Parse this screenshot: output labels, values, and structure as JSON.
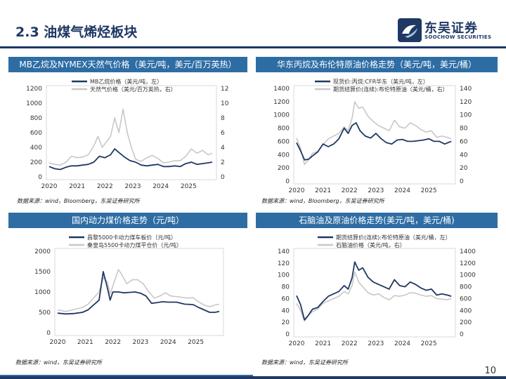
{
  "page": {
    "title": "2.3 油煤气烯烃板块",
    "page_number": "10"
  },
  "brand": {
    "name_cn": "东吴证券",
    "name_en": "SOOCHOW SECURITIES",
    "color": "#1f3864",
    "header_color": "#2e6da4"
  },
  "panels": [
    {
      "header": "MB乙烷及NYMEX天然气价格（美元/吨，美元/百万英热）",
      "source": "数据来源：wind，Bloomberg，东吴证券研究所"
    },
    {
      "header": "华东丙烷及布伦特原油价格走势（美元/吨，美元/桶）",
      "source": "数据来源：wind，Bloomberg，东吴证券研究所"
    },
    {
      "header": "国内动力煤价格走势（元/吨）",
      "source": "数据来源：wind，东吴证券研究所"
    },
    {
      "header": "石脑油及原油价格走势(美元/吨，美元/桶)",
      "source": "数据来源：wind，东吴证券研究所"
    }
  ],
  "chart_data": [
    {
      "type": "line",
      "x_ticks": [
        "2020",
        "2021",
        "2022",
        "2023",
        "2024",
        "2025"
      ],
      "x_range": [
        2020,
        2025.9
      ],
      "ylim_left": [
        0,
        1200
      ],
      "yticks_left": [
        0,
        200,
        400,
        600,
        800,
        1000,
        1200
      ],
      "ylim_right": [
        0,
        12
      ],
      "yticks_right": [
        0,
        2,
        4,
        6,
        8,
        10,
        12
      ],
      "grid": false,
      "series": [
        {
          "name": "MB乙烷价格（美元/吨，左）",
          "axis": "left",
          "color": "#1f3864",
          "x": [
            2020.0,
            2020.2,
            2020.4,
            2020.6,
            2020.8,
            2021.0,
            2021.2,
            2021.4,
            2021.6,
            2021.8,
            2022.0,
            2022.2,
            2022.35,
            2022.5,
            2022.7,
            2022.9,
            2023.1,
            2023.3,
            2023.5,
            2023.7,
            2023.9,
            2024.1,
            2024.3,
            2024.5,
            2024.7,
            2024.9,
            2025.1,
            2025.3,
            2025.5,
            2025.7,
            2025.85
          ],
          "y": [
            140,
            110,
            100,
            130,
            150,
            150,
            160,
            170,
            200,
            280,
            260,
            300,
            380,
            330,
            270,
            220,
            200,
            160,
            150,
            160,
            170,
            140,
            140,
            150,
            140,
            180,
            200,
            170,
            180,
            190,
            200
          ]
        },
        {
          "name": "天然气价格（美元/百万英热，右）",
          "axis": "right",
          "color": "#c8c8c8",
          "x": [
            2020.0,
            2020.2,
            2020.4,
            2020.6,
            2020.8,
            2021.0,
            2021.2,
            2021.4,
            2021.6,
            2021.75,
            2021.9,
            2022.0,
            2022.2,
            2022.35,
            2022.5,
            2022.65,
            2022.8,
            2022.95,
            2023.1,
            2023.3,
            2023.5,
            2023.7,
            2023.9,
            2024.1,
            2024.3,
            2024.5,
            2024.7,
            2024.9,
            2025.1,
            2025.3,
            2025.5,
            2025.7,
            2025.85
          ],
          "y": [
            1.9,
            1.7,
            1.6,
            2.0,
            2.8,
            2.6,
            2.7,
            3.0,
            4.2,
            5.5,
            4.0,
            4.5,
            5.5,
            8.0,
            6.0,
            9.2,
            6.0,
            4.0,
            2.4,
            2.1,
            2.6,
            2.9,
            2.5,
            1.9,
            2.0,
            2.2,
            2.2,
            2.8,
            3.8,
            3.2,
            3.6,
            3.0,
            3.2
          ]
        }
      ]
    },
    {
      "type": "line",
      "x_ticks": [
        "2020",
        "2021",
        "2022",
        "2023",
        "2024",
        "2025"
      ],
      "x_range": [
        2020,
        2025.9
      ],
      "ylim_left": [
        0,
        1400
      ],
      "yticks_left": [
        0,
        200,
        400,
        600,
        800,
        1000,
        1200,
        1400
      ],
      "ylim_right": [
        0,
        140
      ],
      "yticks_right": [
        0,
        20,
        40,
        60,
        80,
        100,
        120,
        140
      ],
      "grid": false,
      "series": [
        {
          "name": "现货价:丙烷:CFR华东（美元/吨，左）",
          "axis": "left",
          "color": "#1f3864",
          "x": [
            2020.0,
            2020.15,
            2020.3,
            2020.45,
            2020.6,
            2020.8,
            2021.0,
            2021.2,
            2021.4,
            2021.6,
            2021.8,
            2021.95,
            2022.1,
            2022.25,
            2022.4,
            2022.6,
            2022.8,
            2023.0,
            2023.2,
            2023.4,
            2023.6,
            2023.8,
            2024.0,
            2024.2,
            2024.4,
            2024.6,
            2024.8,
            2025.0,
            2025.2,
            2025.4,
            2025.6,
            2025.85
          ],
          "y": [
            580,
            460,
            320,
            330,
            380,
            440,
            560,
            520,
            560,
            640,
            800,
            720,
            840,
            880,
            760,
            680,
            650,
            720,
            640,
            580,
            560,
            620,
            630,
            600,
            600,
            610,
            620,
            640,
            600,
            600,
            560,
            600
          ]
        },
        {
          "name": "期货结算价(连续):布伦特原油（美元/桶，右）",
          "axis": "right",
          "color": "#c8c8c8",
          "x": [
            2020.0,
            2020.15,
            2020.3,
            2020.45,
            2020.6,
            2020.8,
            2021.0,
            2021.2,
            2021.4,
            2021.6,
            2021.8,
            2021.95,
            2022.1,
            2022.2,
            2022.35,
            2022.5,
            2022.7,
            2022.9,
            2023.1,
            2023.3,
            2023.5,
            2023.7,
            2023.9,
            2024.1,
            2024.3,
            2024.5,
            2024.7,
            2024.9,
            2025.1,
            2025.3,
            2025.5,
            2025.7,
            2025.85
          ],
          "y": [
            65,
            50,
            25,
            32,
            42,
            45,
            55,
            64,
            68,
            72,
            82,
            76,
            95,
            120,
            110,
            112,
            98,
            90,
            84,
            80,
            76,
            92,
            82,
            80,
            88,
            84,
            78,
            74,
            76,
            66,
            68,
            66,
            64
          ]
        }
      ]
    },
    {
      "type": "line",
      "x_ticks": [
        "2020",
        "2021",
        "2022",
        "2023",
        "2024",
        "2025"
      ],
      "x_range": [
        2020,
        2025.9
      ],
      "ylim_left": [
        0,
        2000
      ],
      "yticks_left": [
        0,
        500,
        1000,
        1500,
        2000
      ],
      "grid": false,
      "series": [
        {
          "name": "昌黎5000卡动力煤车板价（元/吨）",
          "color": "#1f3864",
          "x": [
            2020.0,
            2020.3,
            2020.6,
            2020.9,
            2021.1,
            2021.3,
            2021.5,
            2021.65,
            2021.8,
            2021.9,
            2022.0,
            2022.2,
            2022.4,
            2022.6,
            2022.8,
            2023.0,
            2023.2,
            2023.4,
            2023.6,
            2023.8,
            2024.0,
            2024.3,
            2024.6,
            2024.9,
            2025.1,
            2025.3,
            2025.5,
            2025.7,
            2025.85
          ],
          "y": [
            480,
            460,
            470,
            500,
            560,
            680,
            800,
            1500,
            1100,
            800,
            1000,
            1000,
            980,
            990,
            1000,
            970,
            900,
            720,
            740,
            760,
            750,
            750,
            700,
            690,
            620,
            560,
            500,
            500,
            520
          ]
        },
        {
          "name": "秦皇岛5500卡动力煤平仓价（元/吨）",
          "color": "#c8c8c8",
          "x": [
            2020.0,
            2020.3,
            2020.6,
            2020.9,
            2021.1,
            2021.3,
            2021.5,
            2021.65,
            2021.8,
            2021.9,
            2022.0,
            2022.2,
            2022.3,
            2022.5,
            2022.7,
            2022.9,
            2023.1,
            2023.3,
            2023.5,
            2023.7,
            2023.9,
            2024.1,
            2024.4,
            2024.7,
            2024.9,
            2025.1,
            2025.3,
            2025.5,
            2025.7,
            2025.85
          ],
          "y": [
            560,
            520,
            570,
            620,
            700,
            850,
            1000,
            1350,
            1250,
            950,
            1150,
            1550,
            1450,
            1200,
            1300,
            1300,
            1200,
            1000,
            850,
            900,
            980,
            900,
            880,
            850,
            860,
            760,
            680,
            640,
            680,
            700
          ]
        }
      ]
    },
    {
      "type": "line",
      "x_ticks": [
        "2020",
        "2021",
        "2022",
        "2023",
        "2024",
        "2025"
      ],
      "x_range": [
        2020,
        2025.9
      ],
      "ylim_left": [
        0,
        140
      ],
      "yticks_left": [
        0,
        20,
        40,
        60,
        80,
        100,
        120,
        140
      ],
      "ylim_right": [
        0,
        1400
      ],
      "yticks_right": [
        0,
        200,
        400,
        600,
        800,
        1000,
        1200,
        1400
      ],
      "grid": false,
      "series": [
        {
          "name": "期货结算价(连续):布伦特原油（美元/桶，左）",
          "axis": "left",
          "color": "#1f3864",
          "x": [
            2020.0,
            2020.15,
            2020.3,
            2020.45,
            2020.6,
            2020.8,
            2021.0,
            2021.2,
            2021.4,
            2021.6,
            2021.8,
            2021.95,
            2022.1,
            2022.2,
            2022.35,
            2022.5,
            2022.7,
            2022.9,
            2023.1,
            2023.3,
            2023.5,
            2023.7,
            2023.9,
            2024.1,
            2024.3,
            2024.5,
            2024.7,
            2024.9,
            2025.1,
            2025.3,
            2025.5,
            2025.7,
            2025.85
          ],
          "y": [
            65,
            50,
            24,
            32,
            42,
            45,
            55,
            64,
            68,
            72,
            82,
            76,
            95,
            122,
            108,
            112,
            96,
            88,
            84,
            80,
            76,
            92,
            82,
            80,
            88,
            84,
            78,
            74,
            76,
            66,
            68,
            66,
            64
          ]
        },
        {
          "name": "石脑油价格（美元/吨，右）",
          "axis": "right",
          "color": "#c8c8c8",
          "x": [
            2020.0,
            2020.15,
            2020.3,
            2020.45,
            2020.6,
            2020.8,
            2021.0,
            2021.2,
            2021.4,
            2021.6,
            2021.8,
            2021.95,
            2022.1,
            2022.2,
            2022.35,
            2022.5,
            2022.7,
            2022.9,
            2023.1,
            2023.3,
            2023.5,
            2023.7,
            2023.9,
            2024.1,
            2024.3,
            2024.5,
            2024.7,
            2024.9,
            2025.1,
            2025.3,
            2025.5,
            2025.7,
            2025.85
          ],
          "y": [
            520,
            400,
            220,
            320,
            380,
            420,
            520,
            560,
            600,
            640,
            720,
            680,
            820,
            1050,
            880,
            800,
            700,
            660,
            680,
            620,
            580,
            650,
            640,
            660,
            700,
            690,
            660,
            640,
            650,
            600,
            590,
            580,
            600
          ]
        }
      ]
    }
  ]
}
